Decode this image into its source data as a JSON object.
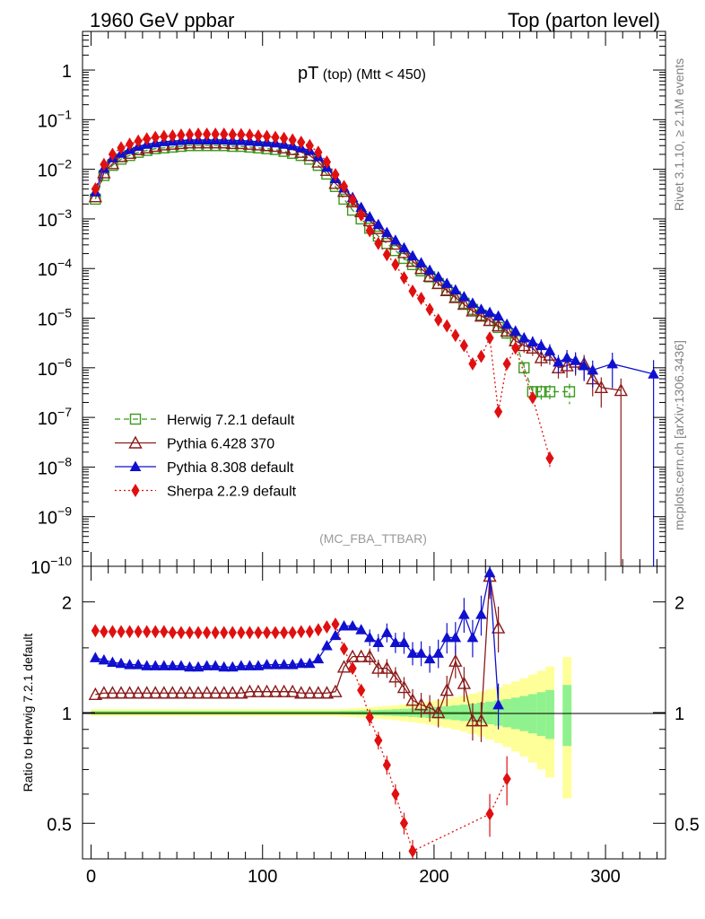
{
  "header": {
    "left": "1960 GeV ppbar",
    "right": "Top (parton level)"
  },
  "plot_title": {
    "main": "pT",
    "sub": " (top) (Mtt < 450)"
  },
  "side_labels": {
    "rivet": "Rivet 3.1.10, ≥ 2.1M events",
    "mcplots": "mcplots.cern.ch [arXiv:1306.3436]"
  },
  "analysis_tag": "(MC_FBA_TTBAR)",
  "ratio_ylabel": "Ratio to Herwig 7.2.1 default",
  "colors": {
    "herwig": "#3a9a1c",
    "pythia6": "#8b1a1a",
    "pythia8": "#1010d0",
    "sherpa": "#e01010",
    "band_yellow": "#ffff99",
    "band_green": "#8ff28f"
  },
  "chart_data": [
    {
      "type": "line",
      "panel": "main",
      "yscale": "log",
      "ylim": [
        1e-10,
        6
      ],
      "xlim": [
        -5,
        335
      ],
      "yticks": [
        {
          "v": 1,
          "label": "1"
        },
        {
          "v": 0.1,
          "base": "10",
          "exp": "−1"
        },
        {
          "v": 0.01,
          "base": "10",
          "exp": "−2"
        },
        {
          "v": 0.001,
          "base": "10",
          "exp": "−3"
        },
        {
          "v": 0.0001,
          "base": "10",
          "exp": "−4"
        },
        {
          "v": 1e-05,
          "base": "10",
          "exp": "−5"
        },
        {
          "v": 1e-06,
          "base": "10",
          "exp": "−6"
        },
        {
          "v": 1e-07,
          "base": "10",
          "exp": "−7"
        },
        {
          "v": 1e-08,
          "base": "10",
          "exp": "−8"
        },
        {
          "v": 1e-09,
          "base": "10",
          "exp": "−9"
        },
        {
          "v": 1e-10,
          "base": "10",
          "exp": "−10"
        }
      ],
      "legend_position": "lower-left",
      "series": [
        {
          "name": "Herwig 7.2.1 default",
          "key": "herwig",
          "marker": "open-square",
          "dash": "6,4",
          "x": [
            2.5,
            7.5,
            12.5,
            17.5,
            22.5,
            27.5,
            32.5,
            37.5,
            42.5,
            47.5,
            52.5,
            57.5,
            62.5,
            67.5,
            72.5,
            77.5,
            82.5,
            87.5,
            92.5,
            97.5,
            102.5,
            107.5,
            112.5,
            117.5,
            122.5,
            127.5,
            132.5,
            137.5,
            142.5,
            147.5,
            152.5,
            157.5,
            162.5,
            167.5,
            172.5,
            177.5,
            182.5,
            187.5,
            192.5,
            197.5,
            202.5,
            207.5,
            212.5,
            217.5,
            222.5,
            227.5,
            232.5,
            237.5,
            242.5,
            247.5,
            252.5,
            257.5,
            262.5,
            267.5,
            279
          ],
          "y": [
            0.0025,
            0.0075,
            0.012,
            0.016,
            0.019,
            0.022,
            0.024,
            0.026,
            0.027,
            0.028,
            0.029,
            0.03,
            0.03,
            0.03,
            0.03,
            0.03,
            0.029,
            0.029,
            0.028,
            0.027,
            0.026,
            0.025,
            0.023,
            0.021,
            0.019,
            0.016,
            0.012,
            0.008,
            0.0045,
            0.0025,
            0.0015,
            0.001,
            0.00065,
            0.00045,
            0.00032,
            0.00023,
            0.00016,
            0.00012,
            9e-05,
            6.8e-05,
            5e-05,
            3.7e-05,
            2.7e-05,
            2e-05,
            1.5e-05,
            1.15e-05,
            9e-06,
            6.5e-06,
            5e-06,
            3.5e-06,
            1e-06,
            3.3e-07,
            3.3e-07,
            3.3e-07,
            3.3e-07
          ]
        },
        {
          "name": "Pythia 6.428 370",
          "key": "pythia6",
          "marker": "open-triangle",
          "dash": "",
          "x": [
            2.5,
            7.5,
            12.5,
            17.5,
            22.5,
            27.5,
            32.5,
            37.5,
            42.5,
            47.5,
            52.5,
            57.5,
            62.5,
            67.5,
            72.5,
            77.5,
            82.5,
            87.5,
            92.5,
            97.5,
            102.5,
            107.5,
            112.5,
            117.5,
            122.5,
            127.5,
            132.5,
            137.5,
            142.5,
            147.5,
            152.5,
            157.5,
            162.5,
            167.5,
            172.5,
            177.5,
            182.5,
            187.5,
            192.5,
            197.5,
            202.5,
            207.5,
            212.5,
            217.5,
            222.5,
            227.5,
            232.5,
            237.5,
            242.5,
            247.5,
            252.5,
            257.5,
            262.5,
            267.5,
            272.5,
            277.5,
            282.5,
            287.5,
            292.5,
            297.5,
            309
          ],
          "y": [
            0.0028,
            0.0085,
            0.013,
            0.018,
            0.021,
            0.025,
            0.027,
            0.029,
            0.031,
            0.032,
            0.033,
            0.034,
            0.034,
            0.034,
            0.034,
            0.034,
            0.033,
            0.033,
            0.032,
            0.031,
            0.03,
            0.029,
            0.027,
            0.025,
            0.022,
            0.019,
            0.014,
            0.0095,
            0.0052,
            0.0036,
            0.0022,
            0.0014,
            0.00092,
            0.00064,
            0.00044,
            0.00031,
            0.00021,
            0.00014,
            0.0001,
            7e-05,
            5e-05,
            3.6e-05,
            2.6e-05,
            1.9e-05,
            1.4e-05,
            1.1e-05,
            9e-06,
            7e-06,
            5.5e-06,
            3.5e-06,
            2.8e-06,
            2.5e-06,
            1.6e-06,
            1.8e-06,
            1e-06,
            1.1e-06,
            1.3e-06,
            1.2e-06,
            6e-07,
            4e-07,
            3.5e-07
          ]
        },
        {
          "name": "Pythia 8.308 default",
          "key": "pythia8",
          "marker": "filled-triangle",
          "dash": "",
          "x": [
            2.5,
            7.5,
            12.5,
            17.5,
            22.5,
            27.5,
            32.5,
            37.5,
            42.5,
            47.5,
            52.5,
            57.5,
            62.5,
            67.5,
            72.5,
            77.5,
            82.5,
            87.5,
            92.5,
            97.5,
            102.5,
            107.5,
            112.5,
            117.5,
            122.5,
            127.5,
            132.5,
            137.5,
            142.5,
            147.5,
            152.5,
            157.5,
            162.5,
            167.5,
            172.5,
            177.5,
            182.5,
            187.5,
            192.5,
            197.5,
            202.5,
            207.5,
            212.5,
            217.5,
            222.5,
            227.5,
            232.5,
            237.5,
            242.5,
            247.5,
            252.5,
            257.5,
            262.5,
            267.5,
            272.5,
            277.5,
            282.5,
            287.5,
            292.5,
            304,
            328
          ],
          "y": [
            0.0035,
            0.0105,
            0.017,
            0.021,
            0.025,
            0.029,
            0.032,
            0.034,
            0.036,
            0.037,
            0.038,
            0.039,
            0.039,
            0.039,
            0.039,
            0.039,
            0.038,
            0.038,
            0.037,
            0.036,
            0.035,
            0.034,
            0.032,
            0.03,
            0.027,
            0.024,
            0.018,
            0.011,
            0.0065,
            0.0042,
            0.0027,
            0.0017,
            0.0011,
            0.00077,
            0.00053,
            0.00037,
            0.00026,
            0.00018,
            0.00013,
            9.22e-05,
            6.8e-05,
            5e-05,
            3.7e-05,
            2.7e-05,
            2e-05,
            1.5e-05,
            1.3e-05,
            1.1e-05,
            7.5e-06,
            5.5e-06,
            4e-06,
            3.3e-06,
            2.8e-06,
            2.2e-06,
            1.3e-06,
            1.6e-06,
            1.4e-06,
            1.1e-06,
            9e-07,
            1.2e-06,
            7.5e-07
          ]
        },
        {
          "name": "Sherpa 2.2.9 default",
          "key": "sherpa",
          "marker": "filled-diamond",
          "dash": "2,3",
          "x": [
            2.5,
            7.5,
            12.5,
            17.5,
            22.5,
            27.5,
            32.5,
            37.5,
            42.5,
            47.5,
            52.5,
            57.5,
            62.5,
            67.5,
            72.5,
            77.5,
            82.5,
            87.5,
            92.5,
            97.5,
            102.5,
            107.5,
            112.5,
            117.5,
            122.5,
            127.5,
            132.5,
            137.5,
            142.5,
            147.5,
            152.5,
            157.5,
            162.5,
            167.5,
            172.5,
            177.5,
            182.5,
            187.5,
            192.5,
            197.5,
            202.5,
            207.5,
            212.5,
            217.5,
            222.5,
            227.5,
            232.5,
            237.5,
            242.5,
            247.5,
            257.5,
            267.5
          ],
          "y": [
            0.004,
            0.0125,
            0.02,
            0.027,
            0.032,
            0.037,
            0.041,
            0.044,
            0.046,
            0.047,
            0.049,
            0.05,
            0.051,
            0.051,
            0.051,
            0.051,
            0.05,
            0.05,
            0.049,
            0.047,
            0.046,
            0.044,
            0.042,
            0.039,
            0.035,
            0.03,
            0.022,
            0.014,
            0.0078,
            0.0045,
            0.0024,
            0.0012,
            0.00058,
            0.00032,
            0.00019,
            0.00012,
            6.5e-05,
            3.5e-05,
            2.5e-05,
            1.5e-05,
            9.2e-06,
            7e-06,
            4.5e-06,
            2.8e-06,
            1.2e-06,
            1.7e-06,
            4e-06,
            1.3e-07,
            1.2e-06,
            2.5e-06,
            2.5e-07,
            1.5e-08
          ]
        }
      ]
    },
    {
      "type": "line",
      "panel": "ratio",
      "yscale": "log",
      "ylim": [
        0.4,
        2.5
      ],
      "xlim": [
        -5,
        335
      ],
      "xticks": [
        0,
        100,
        200,
        300
      ],
      "yticks": [
        0.5,
        1,
        2
      ],
      "ylabel": "Ratio to Herwig 7.2.1 default",
      "series": [
        {
          "name": "Pythia 6.428 370",
          "key": "pythia6",
          "x": [
            2.5,
            7.5,
            12.5,
            17.5,
            22.5,
            27.5,
            32.5,
            37.5,
            42.5,
            47.5,
            52.5,
            57.5,
            62.5,
            67.5,
            72.5,
            77.5,
            82.5,
            87.5,
            92.5,
            97.5,
            102.5,
            107.5,
            112.5,
            117.5,
            122.5,
            127.5,
            132.5,
            137.5,
            142.5,
            147.5,
            152.5,
            157.5,
            162.5,
            167.5,
            172.5,
            177.5,
            182.5,
            187.5,
            192.5,
            197.5,
            202.5,
            207.5,
            212.5,
            217.5,
            222.5,
            227.5,
            232.5,
            237.5
          ],
          "y": [
            1.12,
            1.13,
            1.13,
            1.13,
            1.13,
            1.13,
            1.13,
            1.13,
            1.13,
            1.13,
            1.13,
            1.13,
            1.13,
            1.13,
            1.13,
            1.13,
            1.13,
            1.13,
            1.14,
            1.14,
            1.14,
            1.14,
            1.14,
            1.14,
            1.13,
            1.13,
            1.13,
            1.13,
            1.14,
            1.33,
            1.42,
            1.42,
            1.42,
            1.32,
            1.32,
            1.25,
            1.17,
            1.08,
            1.05,
            1.03,
            1.0,
            1.15,
            1.38,
            1.2,
            0.95,
            0.95,
            2.35,
            1.7
          ]
        },
        {
          "name": "Pythia 8.308 default",
          "key": "pythia8",
          "x": [
            2.5,
            7.5,
            12.5,
            17.5,
            22.5,
            27.5,
            32.5,
            37.5,
            42.5,
            47.5,
            52.5,
            57.5,
            62.5,
            67.5,
            72.5,
            77.5,
            82.5,
            87.5,
            92.5,
            97.5,
            102.5,
            107.5,
            112.5,
            117.5,
            122.5,
            127.5,
            132.5,
            137.5,
            142.5,
            147.5,
            152.5,
            157.5,
            162.5,
            167.5,
            172.5,
            177.5,
            182.5,
            187.5,
            192.5,
            197.5,
            202.5,
            207.5,
            212.5,
            217.5,
            222.5,
            227.5,
            232.5,
            237.5
          ],
          "y": [
            1.41,
            1.39,
            1.37,
            1.36,
            1.35,
            1.35,
            1.34,
            1.34,
            1.34,
            1.34,
            1.34,
            1.33,
            1.33,
            1.34,
            1.34,
            1.33,
            1.33,
            1.34,
            1.34,
            1.34,
            1.35,
            1.35,
            1.35,
            1.35,
            1.36,
            1.36,
            1.4,
            1.52,
            1.62,
            1.72,
            1.72,
            1.68,
            1.6,
            1.55,
            1.65,
            1.55,
            1.55,
            1.45,
            1.45,
            1.4,
            1.45,
            1.6,
            1.6,
            1.85,
            1.6,
            1.85,
            2.4,
            1.05
          ]
        },
        {
          "name": "Sherpa 2.2.9 default",
          "key": "sherpa",
          "x": [
            2.5,
            7.5,
            12.5,
            17.5,
            22.5,
            27.5,
            32.5,
            37.5,
            42.5,
            47.5,
            52.5,
            57.5,
            62.5,
            67.5,
            72.5,
            77.5,
            82.5,
            87.5,
            92.5,
            97.5,
            102.5,
            107.5,
            112.5,
            117.5,
            122.5,
            127.5,
            132.5,
            137.5,
            142.5,
            147.5,
            152.5,
            157.5,
            162.5,
            167.5,
            172.5,
            177.5,
            182.5,
            187.5,
            232.5,
            242.5
          ],
          "y": [
            1.67,
            1.66,
            1.66,
            1.66,
            1.66,
            1.66,
            1.66,
            1.66,
            1.66,
            1.65,
            1.65,
            1.65,
            1.65,
            1.65,
            1.65,
            1.65,
            1.65,
            1.65,
            1.65,
            1.65,
            1.65,
            1.65,
            1.65,
            1.65,
            1.66,
            1.66,
            1.68,
            1.71,
            1.74,
            1.49,
            1.32,
            1.15,
            0.97,
            0.84,
            0.72,
            0.6,
            0.5,
            0.42,
            0.53,
            0.66
          ]
        }
      ]
    }
  ]
}
